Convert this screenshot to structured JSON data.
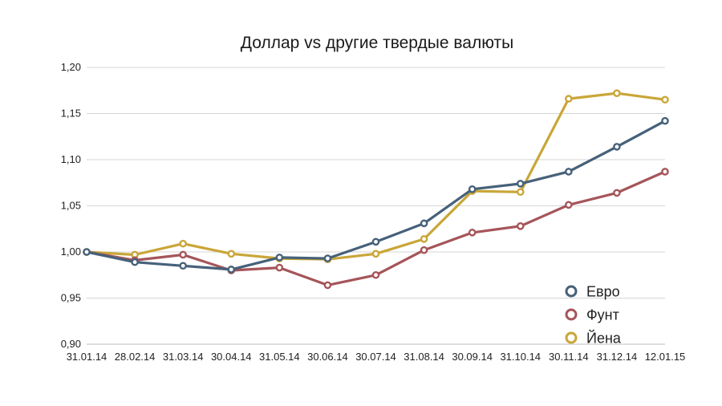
{
  "chart_data": {
    "type": "line",
    "title": "Доллар vs другие твердые валюты",
    "xlabel": "",
    "ylabel": "",
    "ylim": [
      0.9,
      1.2
    ],
    "yticks": [
      "0,90",
      "0,95",
      "1,00",
      "1,05",
      "1,10",
      "1,15",
      "1,20"
    ],
    "categories": [
      "31.01.14",
      "28.02.14",
      "31.03.14",
      "30.04.14",
      "31.05.14",
      "30.06.14",
      "30.07.14",
      "31.08.14",
      "30.09.14",
      "31.10.14",
      "30.11.14",
      "31.12.14",
      "12.01.15"
    ],
    "grid": true,
    "legend_position": "right",
    "series": [
      {
        "name": "Евро",
        "color": "#46617a",
        "values": [
          1.0,
          0.989,
          0.985,
          0.981,
          0.994,
          0.993,
          1.011,
          1.031,
          1.068,
          1.074,
          1.087,
          1.114,
          1.142
        ]
      },
      {
        "name": "Фунт",
        "color": "#a5555a",
        "values": [
          1.0,
          0.991,
          0.997,
          0.98,
          0.983,
          0.964,
          0.975,
          1.002,
          1.021,
          1.028,
          1.051,
          1.064,
          1.087
        ]
      },
      {
        "name": "Йена",
        "color": "#c9a638",
        "values": [
          1.0,
          0.997,
          1.009,
          0.998,
          0.993,
          0.992,
          0.998,
          1.014,
          1.066,
          1.065,
          1.166,
          1.172,
          1.165
        ]
      }
    ]
  }
}
